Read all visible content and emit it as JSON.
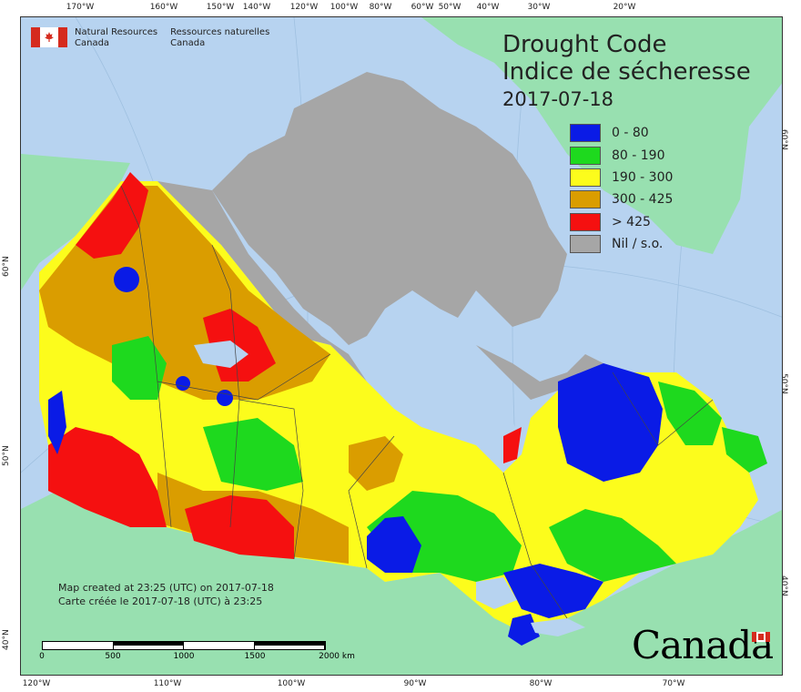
{
  "header": {
    "agency_en_line1": "Natural Resources",
    "agency_en_line2": "Canada",
    "agency_fr_line1": "Ressources naturelles",
    "agency_fr_line2": "Canada",
    "title_en": "Drought Code",
    "title_fr": "Indice de sécheresse",
    "date": "2017-07-18"
  },
  "legend": [
    {
      "label": "0 - 80",
      "color": "#0a1be6"
    },
    {
      "label": "80 - 190",
      "color": "#1ed91e"
    },
    {
      "label": "190 - 300",
      "color": "#fcfc1c"
    },
    {
      "label": "300 - 425",
      "color": "#da9d00"
    },
    {
      "label": "> 425",
      "color": "#f51010"
    },
    {
      "label": "Nil / s.o.",
      "color": "#a6a6a6"
    }
  ],
  "ticks": {
    "top": [
      "170°W",
      "160°W",
      "150°W",
      "140°W",
      "120°W",
      "100°W",
      "80°W",
      "60°W",
      "50°W",
      "40°W",
      "30°W",
      "20°W"
    ],
    "bottom": [
      "120°W",
      "110°W",
      "100°W",
      "90°W",
      "80°W",
      "70°W"
    ],
    "left": [
      "60°N",
      "50°N",
      "40°N"
    ],
    "right": [
      "60°N",
      "50°N",
      "40°N"
    ]
  },
  "credits": {
    "line_en": "Map created at 23:25 (UTC) on 2017-07-18",
    "line_fr": "Carte créée le 2017-07-18 (UTC) à 23:25"
  },
  "scale": {
    "labels": [
      "0",
      "500",
      "1000",
      "1500",
      "2000 km"
    ]
  },
  "wordmark": "Canada",
  "colors": {
    "water": "#b7d3f0",
    "land_other": "#98e0b0",
    "nil": "#a6a6a6"
  }
}
